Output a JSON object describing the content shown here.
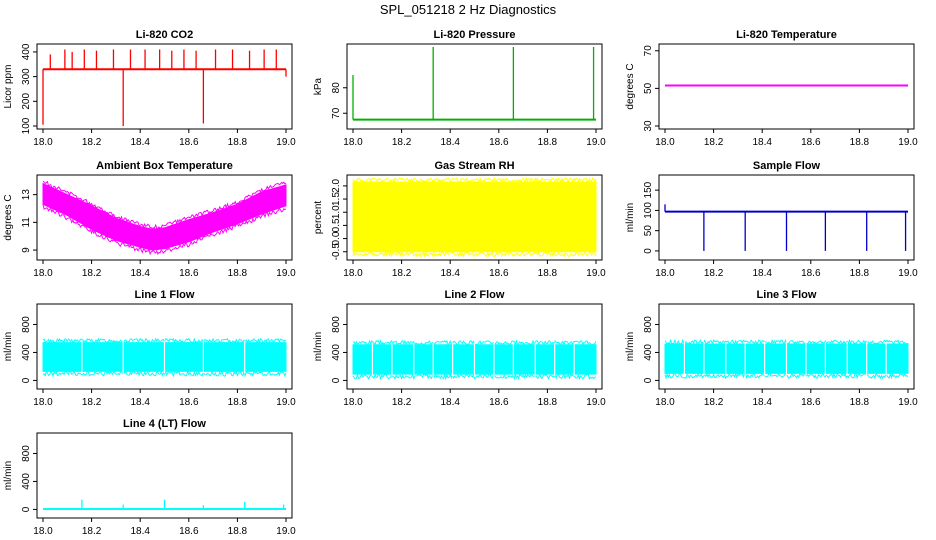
{
  "figure": {
    "title": "SPL_051218  2 Hz Diagnostics"
  },
  "chart_data": [
    {
      "id": "co2",
      "type": "line",
      "title": "Li-820 CO2",
      "ylabel": "Licor ppm",
      "color": "#ff0000",
      "xlim": [
        18.0,
        19.0
      ],
      "ylim": [
        100,
        420
      ],
      "xticks": [
        "18.0",
        "18.2",
        "18.4",
        "18.6",
        "18.8",
        "19.0"
      ],
      "yticks": [
        "100",
        "200",
        "300",
        "400"
      ],
      "baseline": 330,
      "spikes": [
        {
          "x": 18.0,
          "y": 105
        },
        {
          "x": 18.03,
          "y": 390
        },
        {
          "x": 18.09,
          "y": 410
        },
        {
          "x": 18.12,
          "y": 400
        },
        {
          "x": 18.17,
          "y": 410
        },
        {
          "x": 18.22,
          "y": 405
        },
        {
          "x": 18.29,
          "y": 410
        },
        {
          "x": 18.33,
          "y": 100
        },
        {
          "x": 18.36,
          "y": 410
        },
        {
          "x": 18.42,
          "y": 410
        },
        {
          "x": 18.48,
          "y": 410
        },
        {
          "x": 18.53,
          "y": 405
        },
        {
          "x": 18.58,
          "y": 410
        },
        {
          "x": 18.63,
          "y": 405
        },
        {
          "x": 18.66,
          "y": 110
        },
        {
          "x": 18.71,
          "y": 410
        },
        {
          "x": 18.78,
          "y": 410
        },
        {
          "x": 18.85,
          "y": 405
        },
        {
          "x": 18.91,
          "y": 410
        },
        {
          "x": 18.96,
          "y": 410
        },
        {
          "x": 19.0,
          "y": 300
        }
      ]
    },
    {
      "id": "pressure",
      "type": "line",
      "title": "Li-820 Pressure",
      "ylabel": "kPa",
      "color": "#00b000",
      "xlim": [
        18.0,
        19.0
      ],
      "ylim": [
        65,
        96
      ],
      "xticks": [
        "18.0",
        "18.2",
        "18.4",
        "18.6",
        "18.8",
        "19.0"
      ],
      "yticks": [
        "70",
        "80"
      ],
      "baseline": 67.5,
      "spikes": [
        {
          "x": 18.0,
          "y": 85
        },
        {
          "x": 18.33,
          "y": 96
        },
        {
          "x": 18.66,
          "y": 96
        },
        {
          "x": 18.99,
          "y": 96
        }
      ]
    },
    {
      "id": "temperature",
      "type": "line",
      "title": "Li-820 Temperature",
      "ylabel": "degrees C",
      "color": "#ff00ff",
      "xlim": [
        18.0,
        19.0
      ],
      "ylim": [
        30,
        72
      ],
      "xticks": [
        "18.0",
        "18.2",
        "18.4",
        "18.6",
        "18.8",
        "19.0"
      ],
      "yticks": [
        "30",
        "50",
        "70"
      ],
      "baseline": 51.5
    },
    {
      "id": "ambient",
      "type": "area",
      "title": "Ambient Box Temperature",
      "ylabel": "degrees C",
      "color": "#ff00ff",
      "xlim": [
        18.0,
        19.0
      ],
      "ylim": [
        8.5,
        14.2
      ],
      "xticks": [
        "18.0",
        "18.2",
        "18.4",
        "18.6",
        "18.8",
        "19.0"
      ],
      "yticks": [
        "9",
        "11",
        "13"
      ],
      "x": [
        18.0,
        18.1,
        18.2,
        18.3,
        18.4,
        18.45,
        18.5,
        18.6,
        18.7,
        18.8,
        18.9,
        19.0
      ],
      "upper": [
        13.8,
        13.0,
        12.2,
        11.3,
        10.7,
        10.5,
        10.6,
        11.2,
        11.7,
        12.3,
        13.2,
        13.7
      ],
      "lower": [
        12.3,
        11.5,
        10.5,
        9.7,
        9.2,
        9.0,
        9.1,
        9.6,
        10.3,
        10.9,
        11.6,
        12.2
      ]
    },
    {
      "id": "rh",
      "type": "area",
      "title": "Gas Stream RH",
      "ylabel": "percent",
      "color": "#ffff00",
      "xlim": [
        18.0,
        19.0
      ],
      "ylim": [
        -0.7,
        2.3
      ],
      "xticks": [
        "18.0",
        "18.2",
        "18.4",
        "18.6",
        "18.8",
        "19.0"
      ],
      "yticks": [
        "-0.5",
        "0.0",
        "0.5",
        "1.0",
        "1.5",
        "2.0"
      ],
      "x": [
        18.0,
        19.0
      ],
      "upper": [
        2.15,
        2.15
      ],
      "lower": [
        -0.5,
        -0.5
      ]
    },
    {
      "id": "sample",
      "type": "line",
      "title": "Sample Flow",
      "ylabel": "ml/min",
      "color": "#0000cc",
      "xlim": [
        18.0,
        19.0
      ],
      "ylim": [
        -15,
        180
      ],
      "xticks": [
        "18.0",
        "18.2",
        "18.4",
        "18.6",
        "18.8",
        "19.0"
      ],
      "yticks": [
        "0",
        "50",
        "100",
        "150"
      ],
      "baseline": 97,
      "spikes": [
        {
          "x": 18.0,
          "y": 115
        },
        {
          "x": 18.16,
          "y": 0
        },
        {
          "x": 18.33,
          "y": 0
        },
        {
          "x": 18.5,
          "y": 0
        },
        {
          "x": 18.66,
          "y": 0
        },
        {
          "x": 18.83,
          "y": 0
        },
        {
          "x": 18.99,
          "y": 0
        }
      ]
    },
    {
      "id": "line1",
      "type": "area",
      "title": "Line 1 Flow",
      "ylabel": "ml/min",
      "color": "#00ffff",
      "xlim": [
        18.0,
        19.0
      ],
      "ylim": [
        -80,
        1050
      ],
      "xticks": [
        "18.0",
        "18.2",
        "18.4",
        "18.6",
        "18.8",
        "19.0"
      ],
      "yticks": [
        "0",
        "400",
        "800"
      ],
      "x": [
        18.0,
        19.0
      ],
      "upper": [
        540,
        540
      ],
      "lower": [
        130,
        130
      ],
      "gaps": [
        18.16,
        18.33,
        18.5,
        18.66,
        18.83
      ]
    },
    {
      "id": "line2",
      "type": "area",
      "title": "Line 2 Flow",
      "ylabel": "ml/min",
      "color": "#00ffff",
      "xlim": [
        18.0,
        19.0
      ],
      "ylim": [
        -80,
        1050
      ],
      "xticks": [
        "18.0",
        "18.2",
        "18.4",
        "18.6",
        "18.8",
        "19.0"
      ],
      "yticks": [
        "0",
        "400",
        "800"
      ],
      "x": [
        18.0,
        19.0
      ],
      "upper": [
        510,
        510
      ],
      "lower": [
        90,
        90
      ],
      "gaps": [
        18.08,
        18.16,
        18.25,
        18.33,
        18.41,
        18.5,
        18.58,
        18.66,
        18.75,
        18.83,
        18.91
      ]
    },
    {
      "id": "line3",
      "type": "area",
      "title": "Line 3 Flow",
      "ylabel": "ml/min",
      "color": "#00ffff",
      "xlim": [
        18.0,
        19.0
      ],
      "ylim": [
        -80,
        1050
      ],
      "xticks": [
        "18.0",
        "18.2",
        "18.4",
        "18.6",
        "18.8",
        "19.0"
      ],
      "yticks": [
        "0",
        "400",
        "800"
      ],
      "x": [
        18.0,
        19.0
      ],
      "upper": [
        520,
        520
      ],
      "lower": [
        100,
        100
      ],
      "gaps": [
        18.08,
        18.16,
        18.25,
        18.33,
        18.41,
        18.5,
        18.58,
        18.66,
        18.75,
        18.83,
        18.91
      ]
    },
    {
      "id": "line4",
      "type": "line",
      "title": "Line 4 (LT) Flow",
      "ylabel": "ml/min",
      "color": "#00ffff",
      "xlim": [
        18.0,
        19.0
      ],
      "ylim": [
        -80,
        1050
      ],
      "xticks": [
        "18.0",
        "18.2",
        "18.4",
        "18.6",
        "18.8",
        "19.0"
      ],
      "yticks": [
        "0",
        "400",
        "800"
      ],
      "baseline": 5,
      "spikes": [
        {
          "x": 18.16,
          "y": 140
        },
        {
          "x": 18.33,
          "y": 70
        },
        {
          "x": 18.5,
          "y": 140
        },
        {
          "x": 18.66,
          "y": 60
        },
        {
          "x": 18.83,
          "y": 110
        },
        {
          "x": 18.99,
          "y": 70
        }
      ]
    }
  ]
}
